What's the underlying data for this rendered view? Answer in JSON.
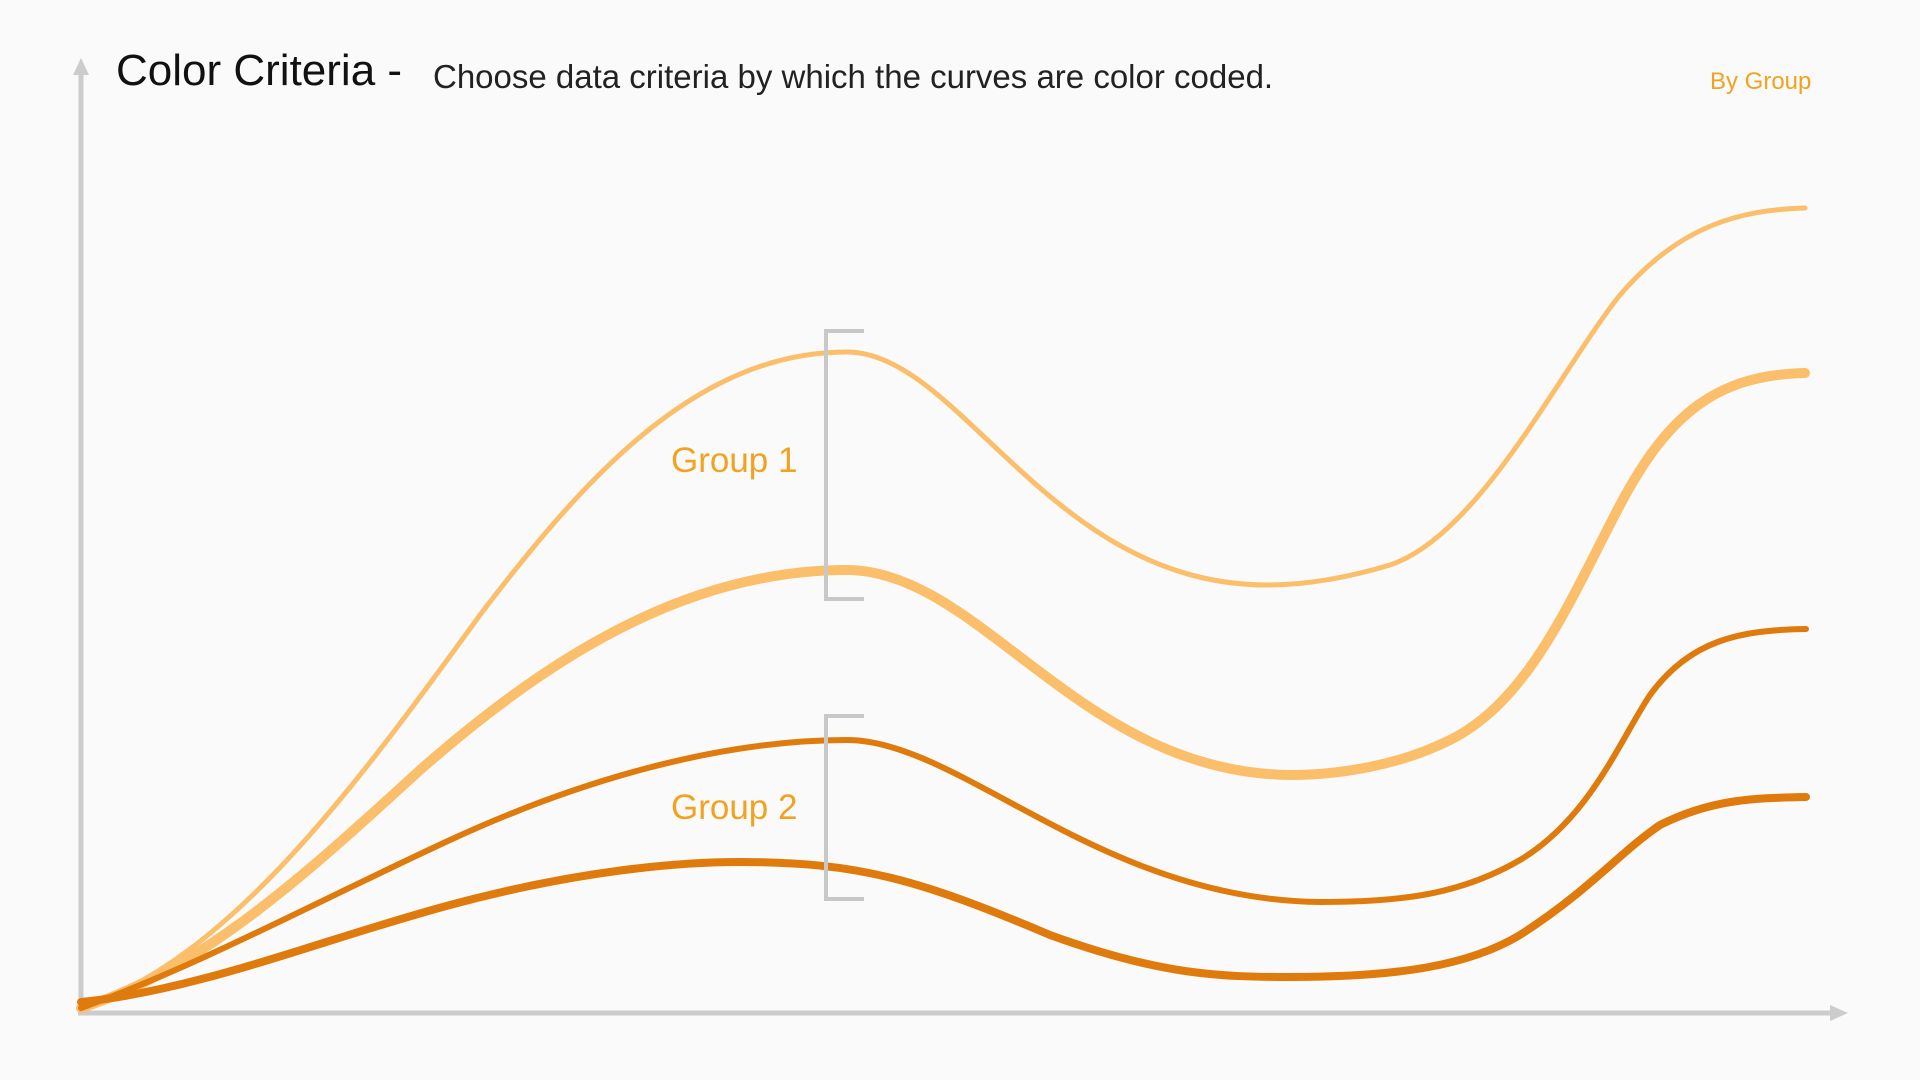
{
  "header": {
    "title": "Color Criteria -",
    "subtitle": "Choose data criteria by which the curves are color coded.",
    "mode_label": "By Group"
  },
  "colors": {
    "group1": "#fbbf6b",
    "group2": "#df7b0c",
    "mode": "#f2a221",
    "label": "#f2a221",
    "axis": "#cccccc",
    "bracket": "#c8c8c8"
  },
  "groups": [
    {
      "label": "Group 1"
    },
    {
      "label": "Group 2"
    }
  ]
}
